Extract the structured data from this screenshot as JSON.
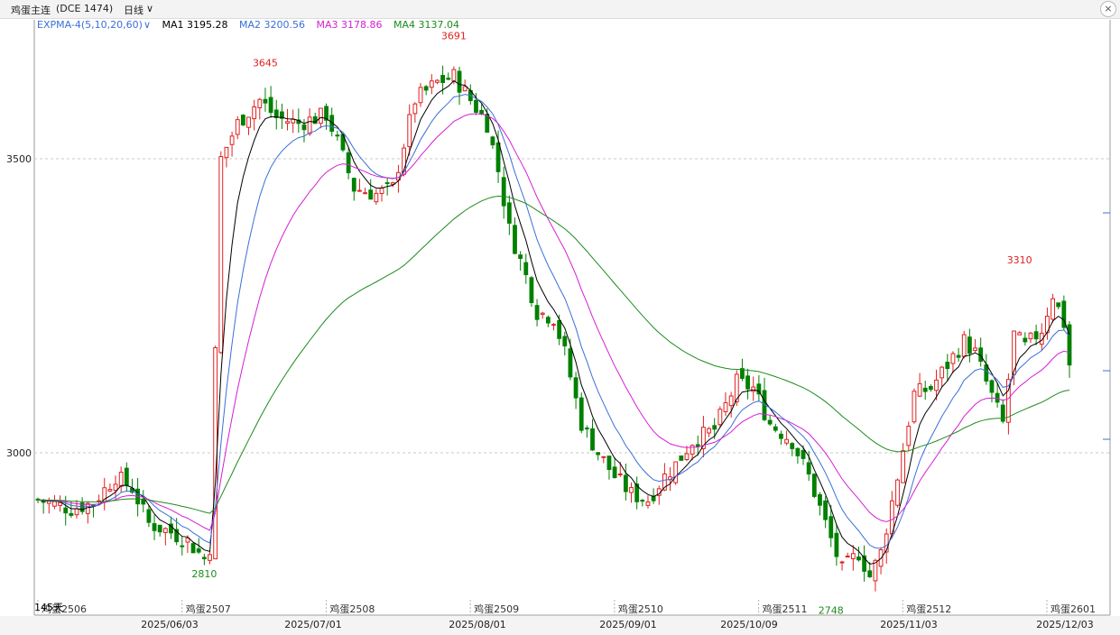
{
  "header": {
    "title": "鸡蛋主连",
    "code": "(DCE 1474)",
    "period": "日线",
    "period_arrow": "∨"
  },
  "indicators": {
    "name": "EXPMA-4(5,10,20,60)",
    "name_arrow": "∨",
    "items": [
      {
        "label": "MA1 3195.28",
        "color": "#000000"
      },
      {
        "label": "MA2 3200.56",
        "color": "#3b6fd8"
      },
      {
        "label": "MA3 3178.86",
        "color": "#d61fd6"
      },
      {
        "label": "MA4 3137.04",
        "color": "#1c8c1c"
      }
    ]
  },
  "chart_data": {
    "type": "candlestick",
    "y_ticks": [
      3500,
      3000
    ],
    "ylim": [
      2750,
      3760
    ],
    "bar_count_label": "145天",
    "dates": [
      "2025/06/03",
      "2025/07/01",
      "2025/08/01",
      "2025/09/01",
      "2025/10/09",
      "2025/11/03",
      "2025/12/03"
    ],
    "contract_labels": [
      "鸡蛋2506",
      "鸡蛋2507",
      "鸡蛋2508",
      "鸡蛋2509",
      "鸡蛋2510",
      "鸡蛋2511",
      "鸡蛋2512",
      "鸡蛋2601"
    ],
    "annotations": [
      {
        "text": "3645",
        "value": 3645,
        "bar": 41,
        "color": "#e02020"
      },
      {
        "text": "3691",
        "value": 3691,
        "bar": 75,
        "color": "#e02020"
      },
      {
        "text": "2810",
        "value": 2810,
        "bar": 30,
        "color": "#1c8c1c"
      },
      {
        "text": "2748",
        "value": 2748,
        "bar": 143,
        "color": "#1c8c1c"
      },
      {
        "text": "3310",
        "value": 3310,
        "bar": 177,
        "color": "#e02020"
      }
    ],
    "up_color": "#e02020",
    "down_color": "#008000",
    "keypoints": [
      [
        0,
        2920
      ],
      [
        6,
        2905
      ],
      [
        10,
        2915
      ],
      [
        14,
        2960
      ],
      [
        17,
        2940
      ],
      [
        20,
        2880
      ],
      [
        24,
        2865
      ],
      [
        27,
        2850
      ],
      [
        30,
        2820
      ],
      [
        31,
        2840
      ],
      [
        33,
        3500
      ],
      [
        36,
        3560
      ],
      [
        40,
        3600
      ],
      [
        43,
        3570
      ],
      [
        47,
        3560
      ],
      [
        52,
        3575
      ],
      [
        54,
        3530
      ],
      [
        57,
        3450
      ],
      [
        61,
        3440
      ],
      [
        64,
        3450
      ],
      [
        68,
        3600
      ],
      [
        72,
        3630
      ],
      [
        75,
        3640
      ],
      [
        78,
        3600
      ],
      [
        81,
        3560
      ],
      [
        83,
        3480
      ],
      [
        85,
        3380
      ],
      [
        88,
        3300
      ],
      [
        90,
        3240
      ],
      [
        93,
        3230
      ],
      [
        95,
        3170
      ],
      [
        98,
        3050
      ],
      [
        101,
        3000
      ],
      [
        104,
        2960
      ],
      [
        107,
        2930
      ],
      [
        110,
        2920
      ],
      [
        113,
        2960
      ],
      [
        115,
        2980
      ],
      [
        118,
        3020
      ],
      [
        122,
        3040
      ],
      [
        126,
        3120
      ],
      [
        129,
        3110
      ],
      [
        132,
        3050
      ],
      [
        136,
        3020
      ],
      [
        139,
        2960
      ],
      [
        142,
        2880
      ],
      [
        145,
        2800
      ],
      [
        148,
        2830
      ],
      [
        150,
        2790
      ],
      [
        152,
        2830
      ],
      [
        155,
        2960
      ],
      [
        158,
        3100
      ],
      [
        161,
        3110
      ],
      [
        164,
        3150
      ],
      [
        167,
        3190
      ],
      [
        169,
        3170
      ],
      [
        171,
        3120
      ],
      [
        174,
        3050
      ],
      [
        176,
        3200
      ],
      [
        178,
        3180
      ],
      [
        181,
        3210
      ],
      [
        183,
        3270
      ],
      [
        185,
        3220
      ],
      [
        186,
        3150
      ]
    ],
    "ma_lines": [
      {
        "name": "MA1",
        "color": "#000000",
        "period": 5
      },
      {
        "name": "MA2",
        "color": "#3b6fd8",
        "period": 10
      },
      {
        "name": "MA3",
        "color": "#d61fd6",
        "period": 20
      },
      {
        "name": "MA4",
        "color": "#1c8c1c",
        "period": 60
      }
    ]
  }
}
